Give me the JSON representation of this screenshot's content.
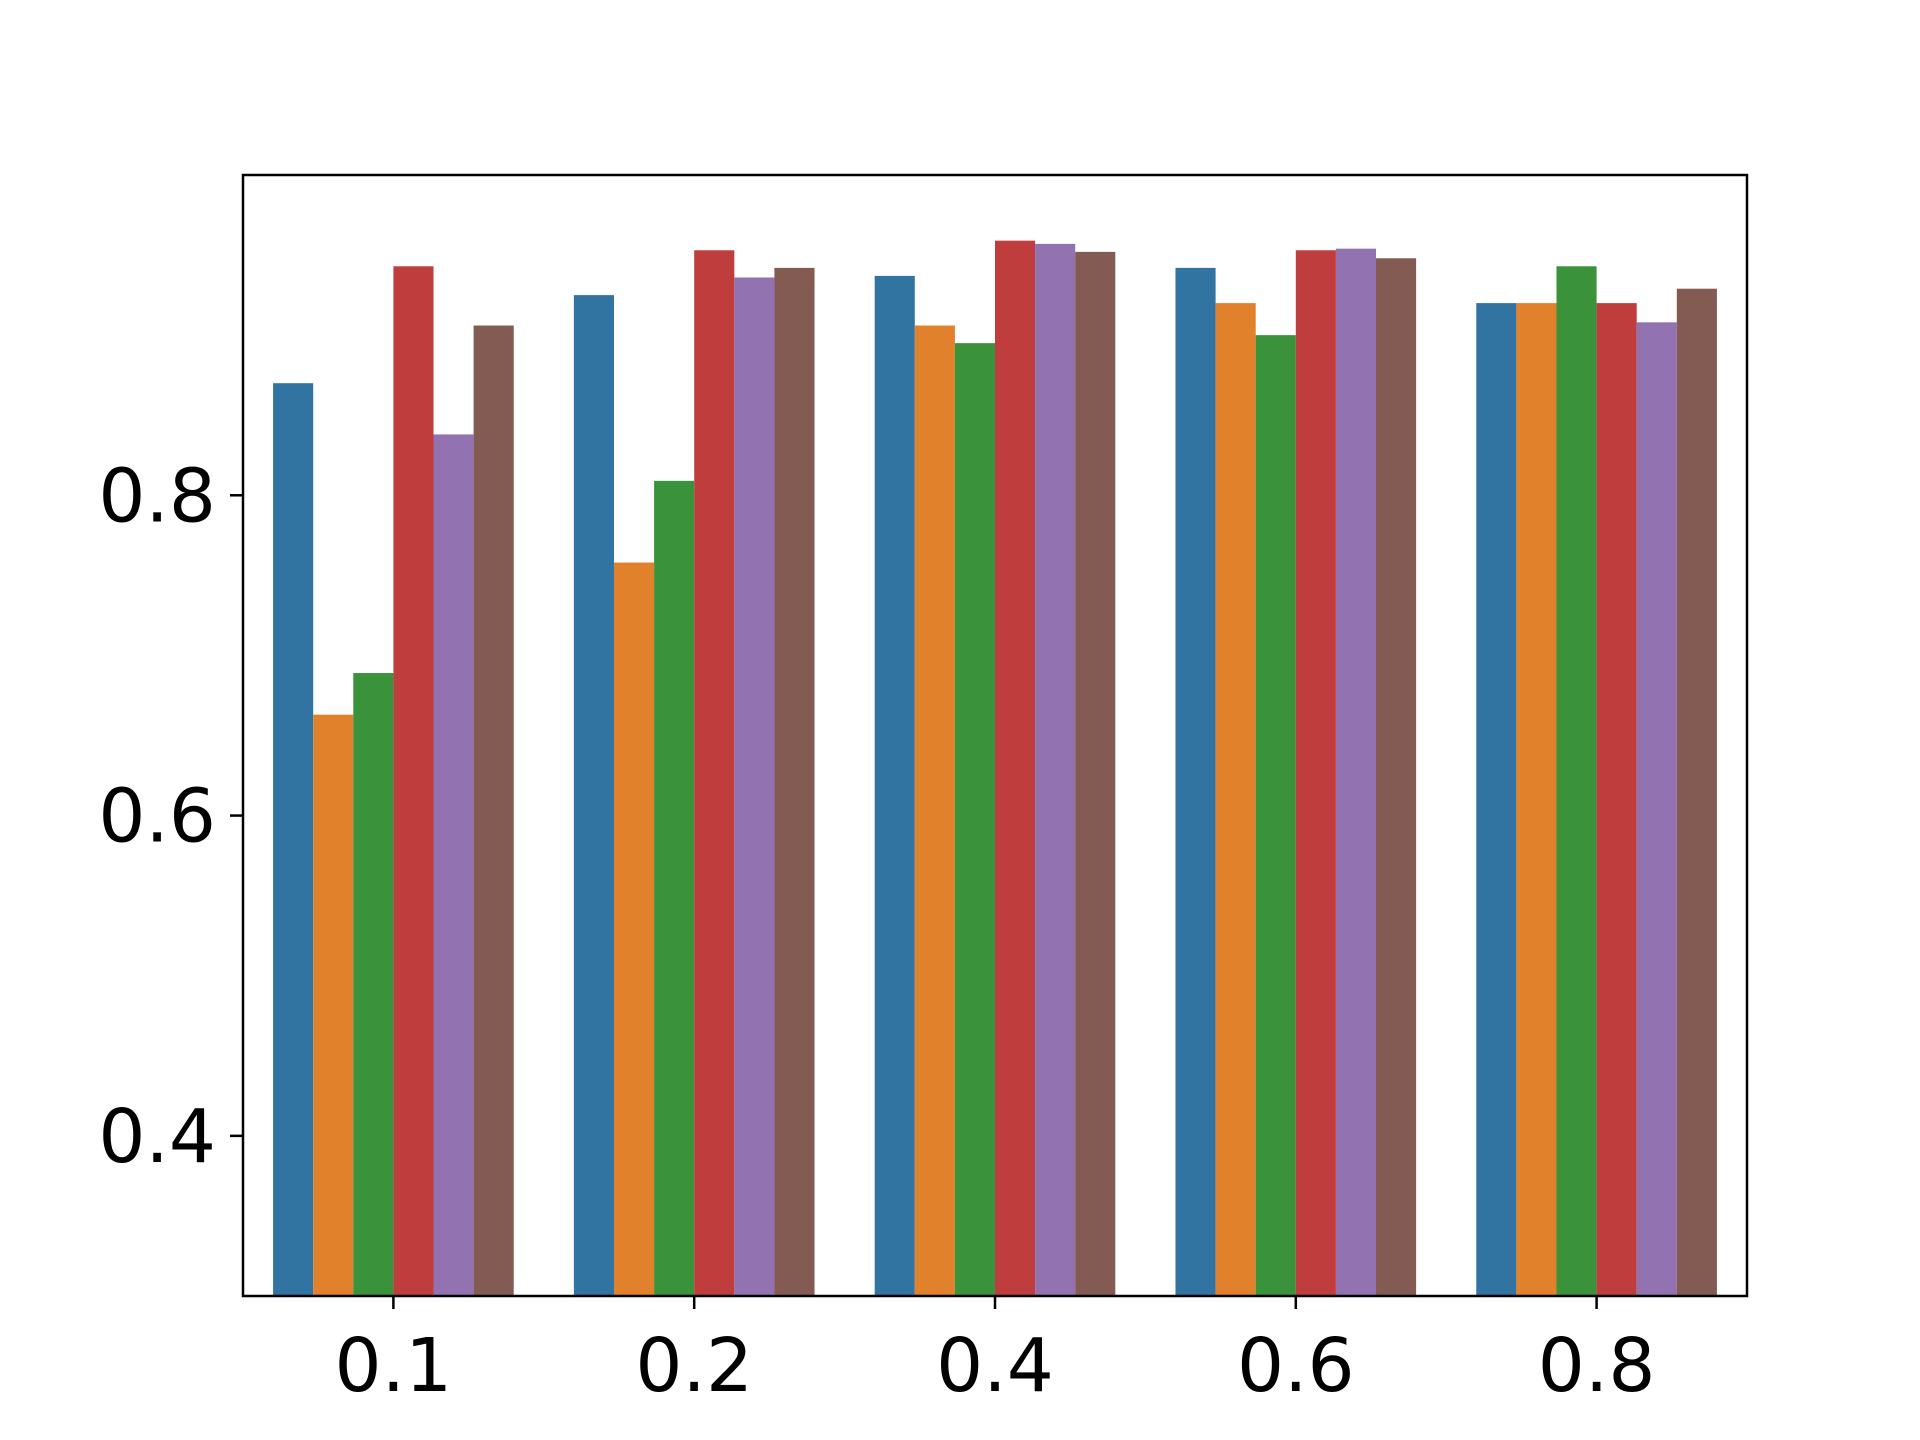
{
  "chart_data": {
    "type": "bar",
    "categories": [
      "0.1",
      "0.2",
      "0.4",
      "0.6",
      "0.8"
    ],
    "series": [
      {
        "color": "#3274a1",
        "values": [
          0.87,
          0.925,
          0.937,
          0.942,
          0.92
        ]
      },
      {
        "color": "#e1812c",
        "values": [
          0.663,
          0.758,
          0.906,
          0.92,
          0.92
        ]
      },
      {
        "color": "#3a923a",
        "values": [
          0.689,
          0.809,
          0.895,
          0.9,
          0.943
        ]
      },
      {
        "color": "#c03d3e",
        "values": [
          0.943,
          0.953,
          0.959,
          0.953,
          0.92
        ]
      },
      {
        "color": "#9372b2",
        "values": [
          0.838,
          0.936,
          0.957,
          0.954,
          0.908
        ]
      },
      {
        "color": "#845b53",
        "values": [
          0.906,
          0.942,
          0.952,
          0.948,
          0.929
        ]
      }
    ],
    "ylim": [
      0.3,
      1.0
    ],
    "yticks": [
      "0.4",
      "0.6",
      "0.8"
    ],
    "title": "",
    "xlabel": "",
    "ylabel": "",
    "grid": false,
    "legend": "none"
  }
}
